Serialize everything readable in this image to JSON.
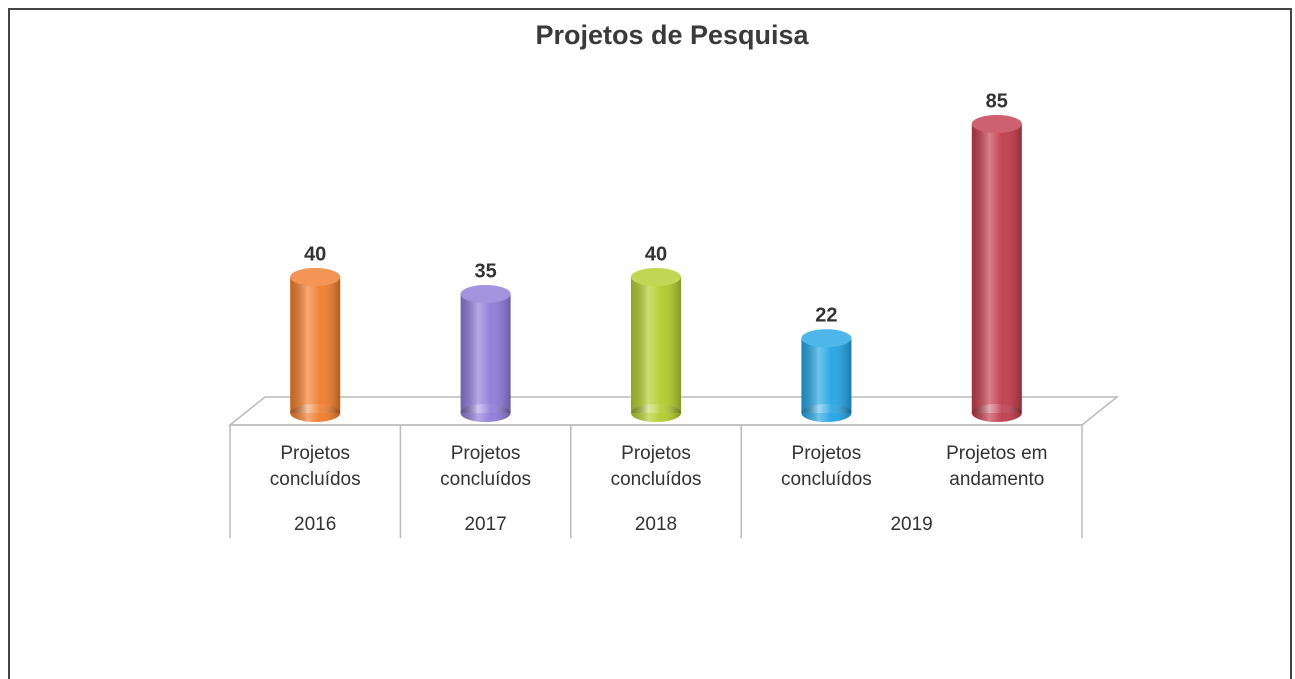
{
  "chart_data": {
    "type": "bar",
    "title": "Projetos de Pesquisa",
    "groups": [
      {
        "name": "2016",
        "categories": [
          "Projetos concluídos"
        ],
        "values": [
          40
        ],
        "colors": [
          "#f07b2a"
        ]
      },
      {
        "name": "2017",
        "categories": [
          "Projetos concluídos"
        ],
        "values": [
          35
        ],
        "colors": [
          "#8e7ad8"
        ]
      },
      {
        "name": "2018",
        "categories": [
          "Projetos concluídos"
        ],
        "values": [
          40
        ],
        "colors": [
          "#b2cc2a"
        ]
      },
      {
        "name": "2019",
        "categories": [
          "Projetos concluídos",
          "Projetos em andamento"
        ],
        "values": [
          22,
          85
        ],
        "colors": [
          "#22a4e3",
          "#c23a4b"
        ]
      }
    ]
  }
}
